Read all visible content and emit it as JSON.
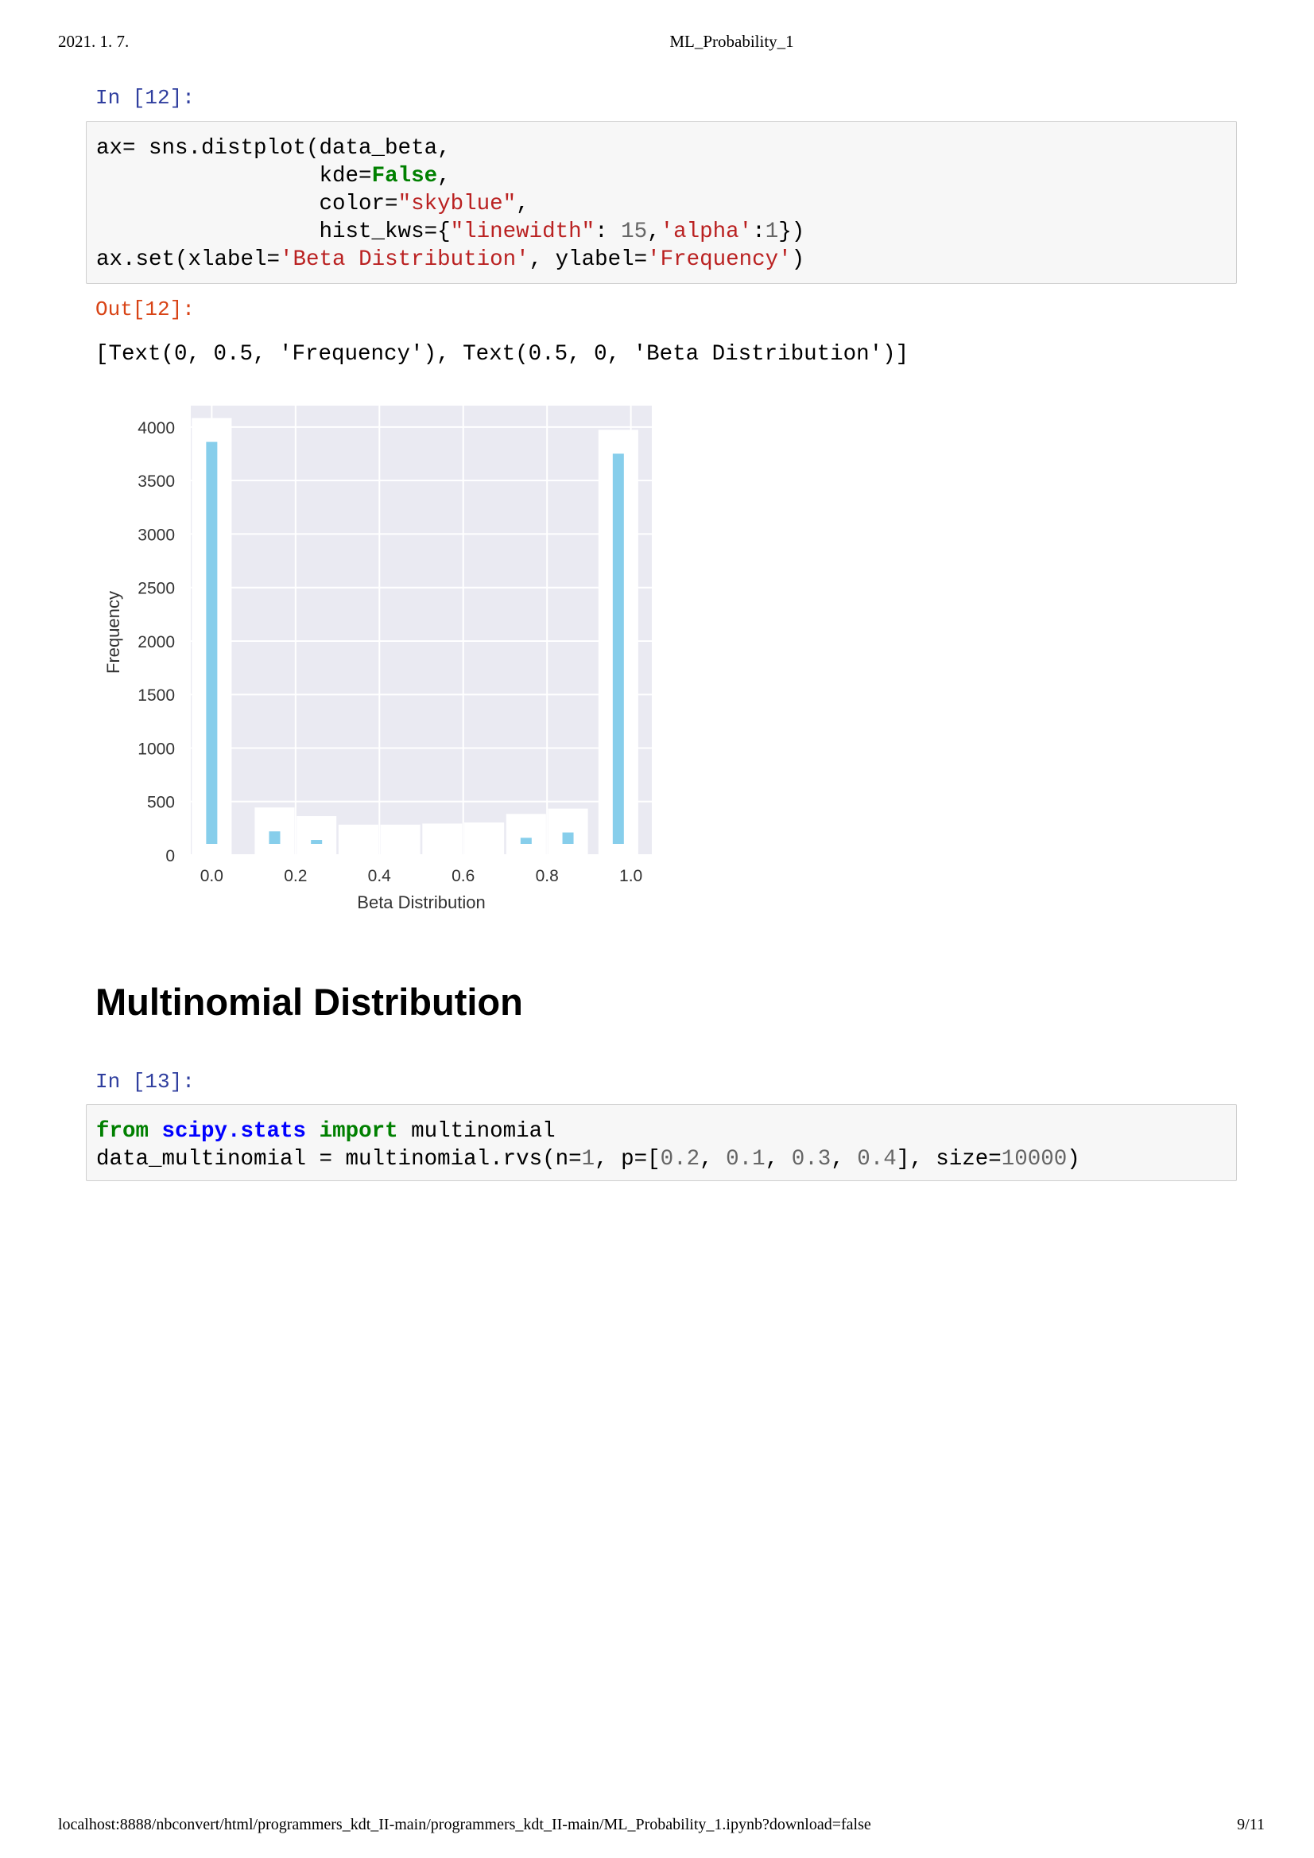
{
  "header": {
    "date": "2021. 1. 7.",
    "title": "ML_Probability_1"
  },
  "footer": {
    "url": "localhost:8888/nbconvert/html/programmers_kdt_II-main/programmers_kdt_II-main/ML_Probability_1.ipynb?download=false",
    "page": "9/11"
  },
  "cell12": {
    "in_prompt": "In [12]:",
    "out_prompt": "Out[12]:",
    "output_text": "[Text(0, 0.5, 'Frequency'), Text(0.5, 0, 'Beta Distribution')]"
  },
  "section": {
    "heading": "Multinomial Distribution"
  },
  "cell13": {
    "in_prompt": "In [13]:"
  },
  "chart_data": {
    "type": "bar",
    "xlabel": "Beta Distribution",
    "ylabel": "Frequency",
    "xlim": [
      -0.05,
      1.05
    ],
    "ylim": [
      0,
      4200
    ],
    "xticks": [
      "0.0",
      "0.2",
      "0.4",
      "0.6",
      "0.8",
      "1.0"
    ],
    "yticks": [
      "0",
      "500",
      "1000",
      "1500",
      "2000",
      "2500",
      "3000",
      "3500",
      "4000"
    ],
    "grid": true,
    "bar_color": "#87ceeb",
    "bins": [
      {
        "x": 0.0,
        "value": 3980
      },
      {
        "x": 0.15,
        "value": 340
      },
      {
        "x": 0.25,
        "value": 260
      },
      {
        "x": 0.35,
        "value": 180
      },
      {
        "x": 0.45,
        "value": 180
      },
      {
        "x": 0.55,
        "value": 190
      },
      {
        "x": 0.65,
        "value": 200
      },
      {
        "x": 0.75,
        "value": 280
      },
      {
        "x": 0.85,
        "value": 330
      },
      {
        "x": 0.97,
        "value": 3870
      }
    ]
  }
}
